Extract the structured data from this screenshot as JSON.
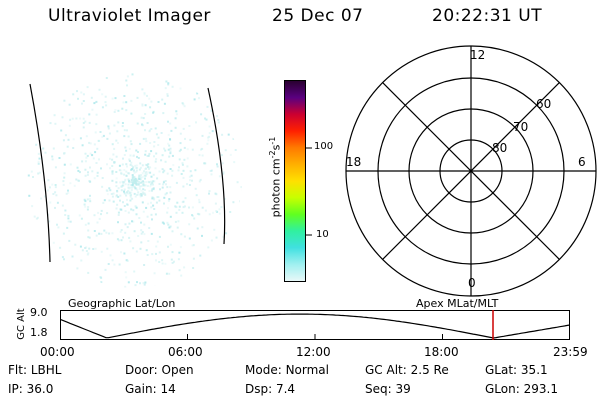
{
  "header": {
    "title": "Ultraviolet Imager",
    "date": "25 Dec 07",
    "time": "20:22:31 UT"
  },
  "colorbar": {
    "unit_main": "photon cm",
    "unit_exp1": "-2",
    "unit_s": "s",
    "unit_exp2": "-1",
    "ticks": [
      "100",
      "10"
    ],
    "colors": [
      "#2a0030",
      "#5a0080",
      "#cc0030",
      "#ff2000",
      "#ff7a00",
      "#ffb000",
      "#ffe000",
      "#c8ff00",
      "#60ff20",
      "#30f0a0",
      "#40e0e0",
      "#a0f0f0",
      "#e8f8f8"
    ]
  },
  "polar": {
    "labels": {
      "top": "12",
      "bottom": "0",
      "left": "18",
      "right": "6",
      "ring_60": "60",
      "ring_70": "70",
      "ring_80": "80"
    }
  },
  "timeline": {
    "left_title": "Geographic Lat/Lon",
    "right_title": "Apex MLat/MLT",
    "y_axis_label": "GC Alt",
    "y_max": "9.0",
    "y_min": "1.8",
    "x_ticks": [
      "00:00",
      "06:00",
      "12:00",
      "18:00",
      "23:59"
    ],
    "marker_color": "#cc0000",
    "marker_time_hours": 20.375
  },
  "info": {
    "row1": [
      {
        "label": "Flt:",
        "value": "LBHL"
      },
      {
        "label": "Door:",
        "value": "Open"
      },
      {
        "label": "Mode:",
        "value": "Normal"
      },
      {
        "label": "GC Alt:",
        "value": "2.5 Re"
      },
      {
        "label": "GLat:",
        "value": "35.1"
      }
    ],
    "row2": [
      {
        "label": "IP:",
        "value": "36.0"
      },
      {
        "label": "Gain:",
        "value": "14"
      },
      {
        "label": "Dsp:",
        "value": "7.4"
      },
      {
        "label": "Seq:",
        "value": "39"
      },
      {
        "label": "GLon:",
        "value": "293.1"
      }
    ]
  }
}
